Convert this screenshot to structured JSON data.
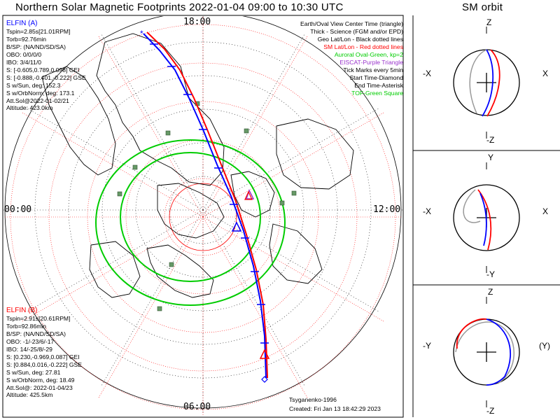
{
  "title": "Northern Solar Magnetic Footprints 2022-01-04 09:00 to 10:30 UTC",
  "sm_orbit_title": "SM orbit",
  "colors": {
    "elfin_a": "#0000ff",
    "elfin_b": "#ff0000",
    "oval": "#00cc00",
    "geo_grid": "#000000",
    "sm_grid": "#ff0000",
    "eiscat": "#9933cc",
    "legend_green": "#00cc00",
    "legend_purple": "#9933cc",
    "orbit_gray": "#999999"
  },
  "elfin_a": {
    "header": "ELFIN (A)",
    "lines": [
      "Tspin=2.85s[21.01RPM]",
      "Torb=92.76min",
      "B/SP: (NA/ND/SD/SA)",
      "OBO: 0/0/0/0",
      "IBO: 3/4/11/0",
      "S: [-0.605,0.789,0.098] GEI",
      "S: [-0.888,-0.401,-0.222] GSE",
      "S w/Sun, deg: 152.3",
      "S w/OrbNorm, deg: 173.1",
      "Att.Sol@2022-01-02/21",
      "Altitude: 423.0km"
    ]
  },
  "elfin_b": {
    "header": "ELFIN (B)",
    "lines": [
      "Tspin=2.91s[20.61RPM]",
      "Torb=92.86min",
      "B/SP: (NA/ND/SD/SA)",
      "OBO: -1/-23/6/-17",
      "IBO: 14/-25/8/-29",
      "S: [0.230,-0.969,0.087] GEI",
      "S: [0.884,0.016,-0.222] GSE",
      "S w/Sun, deg: 27.81",
      "S w/OrbNorm, deg: 18.49",
      "Att.Sol@: 2022-01-04/23",
      "Altitude: 425.5km"
    ]
  },
  "legend": [
    {
      "text": "Earth/Oval View Center Time (triangle)",
      "color": "#000000"
    },
    {
      "text": "Thick - Science (FGM and/or EPD)",
      "color": "#000000"
    },
    {
      "text": "Geo Lat/Lon - Black dotted lines",
      "color": "#000000"
    },
    {
      "text": "SM Lat/Lon - Red dotted lines",
      "color": "#ff0000"
    },
    {
      "text": "Auroral Oval-Green, kp=2",
      "color": "#00cc00"
    },
    {
      "text": "EISCAT-Purple Triangle",
      "color": "#9933cc"
    },
    {
      "text": "Tick Marks every 5min",
      "color": "#000000"
    },
    {
      "text": "Start Time-Diamond",
      "color": "#000000"
    },
    {
      "text": "End Time-Asterisk",
      "color": "#000000"
    },
    {
      "text": "TOF-Green Square",
      "color": "#00cc00"
    }
  ],
  "hour_labels": {
    "top": "18:00",
    "left": "00:00",
    "right": "12:00",
    "bottom": "06:00"
  },
  "credits": {
    "model": "Tsyganenko-1996",
    "created": "Created: Fri Jan 13 18:42:29 2023"
  },
  "panels": [
    {
      "top": "Z",
      "bottom": "-Z",
      "left": "-X",
      "right": "X"
    },
    {
      "top": "Y",
      "bottom": "-Y",
      "left": "-X",
      "right": "X"
    },
    {
      "top": "Z",
      "bottom": "-Z",
      "left": "-Y",
      "right": "(Y)"
    }
  ]
}
